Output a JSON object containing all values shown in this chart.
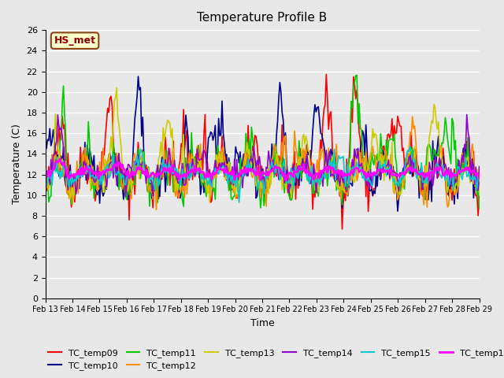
{
  "title": "Temperature Profile B",
  "xlabel": "Time",
  "ylabel": "Temperature (C)",
  "ylim": [
    0,
    26
  ],
  "yticks": [
    0,
    2,
    4,
    6,
    8,
    10,
    12,
    14,
    16,
    18,
    20,
    22,
    24,
    26
  ],
  "annotation_text": "HS_met",
  "annotation_color": "#8B0000",
  "annotation_bg": "#FFFFCC",
  "annotation_border": "#8B4513",
  "series": {
    "TC_temp09": {
      "color": "#FF0000",
      "lw": 1.2
    },
    "TC_temp10": {
      "color": "#00008B",
      "lw": 1.2
    },
    "TC_temp11": {
      "color": "#00CC00",
      "lw": 1.2
    },
    "TC_temp12": {
      "color": "#FF8C00",
      "lw": 1.2
    },
    "TC_temp13": {
      "color": "#CCCC00",
      "lw": 1.2
    },
    "TC_temp14": {
      "color": "#9400D3",
      "lw": 1.2
    },
    "TC_temp15": {
      "color": "#00CCCC",
      "lw": 1.2
    },
    "TC_temp16": {
      "color": "#FF00FF",
      "lw": 2.0
    }
  },
  "background_color": "#E8E8E8",
  "plot_bg": "#E8E8E8",
  "n_days": 16,
  "start_day": 13,
  "points_per_day": 24,
  "seed": 42
}
